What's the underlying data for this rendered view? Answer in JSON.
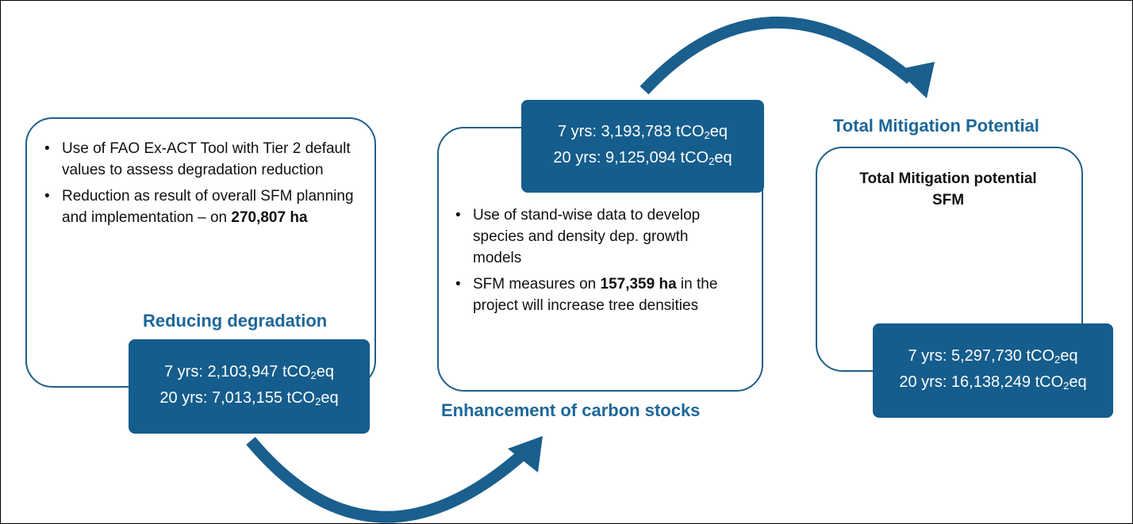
{
  "reducing": {
    "title": "Reducing degradation",
    "bullets": [
      {
        "before": "Use of FAO Ex-ACT Tool with Tier 2 default values to assess degradation reduction"
      },
      {
        "before": "Reduction as result of overall SFM planning and implementation – on ",
        "bold": "270,807 ha"
      }
    ],
    "results": [
      {
        "prefix": "7 yrs: 2,103,947 tCO",
        "sub": "2",
        "suffix": "eq"
      },
      {
        "prefix": "20 yrs: 7,013,155 tCO",
        "sub": "2",
        "suffix": "eq"
      }
    ]
  },
  "enhancement": {
    "title": "Enhancement of carbon stocks",
    "bullets": [
      {
        "before": "Use of stand-wise data to develop species and density dep. growth models"
      },
      {
        "before": "SFM measures on ",
        "bold": "157,359 ha",
        "after": " in the project will increase tree densities"
      }
    ],
    "results": [
      {
        "prefix": "7 yrs: 3,193,783 tCO",
        "sub": "2",
        "suffix": "eq"
      },
      {
        "prefix": "20 yrs: 9,125,094 tCO",
        "sub": "2",
        "suffix": "eq"
      }
    ]
  },
  "total": {
    "title": "Total Mitigation Potential",
    "heading": "Total Mitigation potential SFM",
    "results": [
      {
        "prefix": "7 yrs: 5,297,730 tCO",
        "sub": "2",
        "suffix": "eq"
      },
      {
        "prefix": "20 yrs: 16,138,249 tCO",
        "sub": "2",
        "suffix": "eq"
      }
    ]
  }
}
